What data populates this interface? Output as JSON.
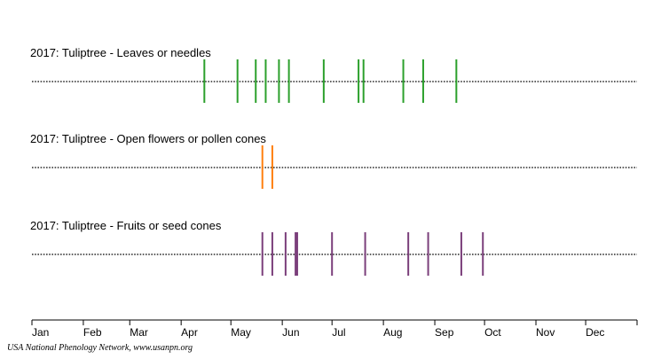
{
  "chart_data": {
    "type": "timeline",
    "title": "",
    "xlabel": "",
    "ylabel": "",
    "x_axis": {
      "tick_labels": [
        "Jan",
        "Feb",
        "Mar",
        "Apr",
        "May",
        "Jun",
        "Jul",
        "Aug",
        "Sep",
        "Oct",
        "Nov",
        "Dec"
      ],
      "domain_days": [
        0,
        365
      ]
    },
    "rows": [
      {
        "label": "2017: Tuliptree - Leaves or needles",
        "color": "#2ca02c",
        "observation_days": [
          104,
          124,
          135,
          141,
          149,
          155,
          176,
          197,
          200,
          224,
          236,
          256
        ]
      },
      {
        "label": "2017: Tuliptree - Open flowers or pollen cones",
        "color": "#ff7f0e",
        "observation_days": [
          139,
          145
        ]
      },
      {
        "label": "2017: Tuliptree - Fruits or seed cones",
        "color": "#7b3f7b",
        "observation_days": [
          139,
          145,
          153,
          159,
          160,
          181,
          201,
          227,
          239,
          259,
          272
        ]
      }
    ]
  },
  "attribution": "USA National Phenology Network, www.usanpn.org"
}
